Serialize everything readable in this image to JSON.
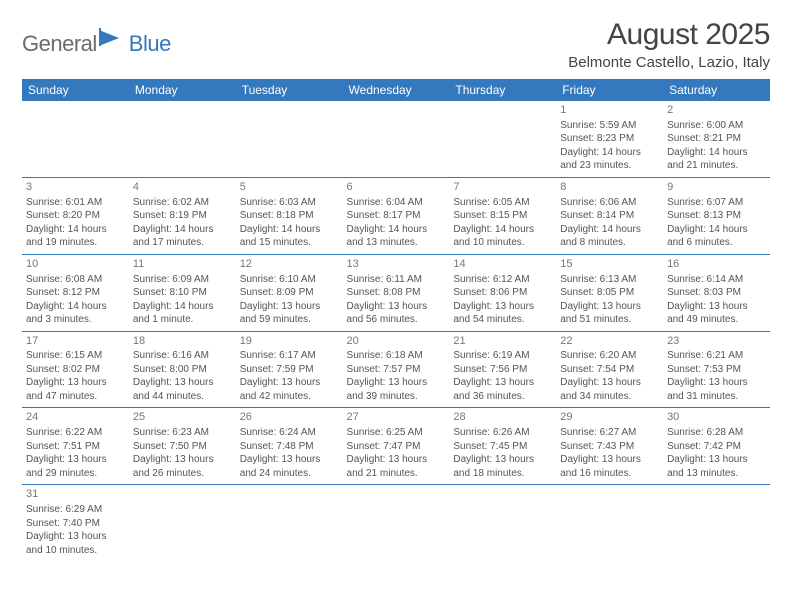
{
  "logo": {
    "text1": "General",
    "text2": "Blue"
  },
  "title": "August 2025",
  "location": "Belmonte Castello, Lazio, Italy",
  "colors": {
    "header_bg": "#3478bd",
    "header_text": "#ffffff",
    "border": "#3478bd",
    "body_text": "#555555",
    "daynum_text": "#777777",
    "title_text": "#444444",
    "logo_gray": "#6b6b6b"
  },
  "fonts": {
    "title_size": 30,
    "location_size": 15,
    "th_size": 12,
    "cell_size": 10,
    "daynum_size": 11
  },
  "dayHeaders": [
    "Sunday",
    "Monday",
    "Tuesday",
    "Wednesday",
    "Thursday",
    "Friday",
    "Saturday"
  ],
  "weeks": [
    [
      null,
      null,
      null,
      null,
      null,
      {
        "n": "1",
        "sr": "Sunrise: 5:59 AM",
        "ss": "Sunset: 8:23 PM",
        "d1": "Daylight: 14 hours",
        "d2": "and 23 minutes."
      },
      {
        "n": "2",
        "sr": "Sunrise: 6:00 AM",
        "ss": "Sunset: 8:21 PM",
        "d1": "Daylight: 14 hours",
        "d2": "and 21 minutes."
      }
    ],
    [
      {
        "n": "3",
        "sr": "Sunrise: 6:01 AM",
        "ss": "Sunset: 8:20 PM",
        "d1": "Daylight: 14 hours",
        "d2": "and 19 minutes."
      },
      {
        "n": "4",
        "sr": "Sunrise: 6:02 AM",
        "ss": "Sunset: 8:19 PM",
        "d1": "Daylight: 14 hours",
        "d2": "and 17 minutes."
      },
      {
        "n": "5",
        "sr": "Sunrise: 6:03 AM",
        "ss": "Sunset: 8:18 PM",
        "d1": "Daylight: 14 hours",
        "d2": "and 15 minutes."
      },
      {
        "n": "6",
        "sr": "Sunrise: 6:04 AM",
        "ss": "Sunset: 8:17 PM",
        "d1": "Daylight: 14 hours",
        "d2": "and 13 minutes."
      },
      {
        "n": "7",
        "sr": "Sunrise: 6:05 AM",
        "ss": "Sunset: 8:15 PM",
        "d1": "Daylight: 14 hours",
        "d2": "and 10 minutes."
      },
      {
        "n": "8",
        "sr": "Sunrise: 6:06 AM",
        "ss": "Sunset: 8:14 PM",
        "d1": "Daylight: 14 hours",
        "d2": "and 8 minutes."
      },
      {
        "n": "9",
        "sr": "Sunrise: 6:07 AM",
        "ss": "Sunset: 8:13 PM",
        "d1": "Daylight: 14 hours",
        "d2": "and 6 minutes."
      }
    ],
    [
      {
        "n": "10",
        "sr": "Sunrise: 6:08 AM",
        "ss": "Sunset: 8:12 PM",
        "d1": "Daylight: 14 hours",
        "d2": "and 3 minutes."
      },
      {
        "n": "11",
        "sr": "Sunrise: 6:09 AM",
        "ss": "Sunset: 8:10 PM",
        "d1": "Daylight: 14 hours",
        "d2": "and 1 minute."
      },
      {
        "n": "12",
        "sr": "Sunrise: 6:10 AM",
        "ss": "Sunset: 8:09 PM",
        "d1": "Daylight: 13 hours",
        "d2": "and 59 minutes."
      },
      {
        "n": "13",
        "sr": "Sunrise: 6:11 AM",
        "ss": "Sunset: 8:08 PM",
        "d1": "Daylight: 13 hours",
        "d2": "and 56 minutes."
      },
      {
        "n": "14",
        "sr": "Sunrise: 6:12 AM",
        "ss": "Sunset: 8:06 PM",
        "d1": "Daylight: 13 hours",
        "d2": "and 54 minutes."
      },
      {
        "n": "15",
        "sr": "Sunrise: 6:13 AM",
        "ss": "Sunset: 8:05 PM",
        "d1": "Daylight: 13 hours",
        "d2": "and 51 minutes."
      },
      {
        "n": "16",
        "sr": "Sunrise: 6:14 AM",
        "ss": "Sunset: 8:03 PM",
        "d1": "Daylight: 13 hours",
        "d2": "and 49 minutes."
      }
    ],
    [
      {
        "n": "17",
        "sr": "Sunrise: 6:15 AM",
        "ss": "Sunset: 8:02 PM",
        "d1": "Daylight: 13 hours",
        "d2": "and 47 minutes."
      },
      {
        "n": "18",
        "sr": "Sunrise: 6:16 AM",
        "ss": "Sunset: 8:00 PM",
        "d1": "Daylight: 13 hours",
        "d2": "and 44 minutes."
      },
      {
        "n": "19",
        "sr": "Sunrise: 6:17 AM",
        "ss": "Sunset: 7:59 PM",
        "d1": "Daylight: 13 hours",
        "d2": "and 42 minutes."
      },
      {
        "n": "20",
        "sr": "Sunrise: 6:18 AM",
        "ss": "Sunset: 7:57 PM",
        "d1": "Daylight: 13 hours",
        "d2": "and 39 minutes."
      },
      {
        "n": "21",
        "sr": "Sunrise: 6:19 AM",
        "ss": "Sunset: 7:56 PM",
        "d1": "Daylight: 13 hours",
        "d2": "and 36 minutes."
      },
      {
        "n": "22",
        "sr": "Sunrise: 6:20 AM",
        "ss": "Sunset: 7:54 PM",
        "d1": "Daylight: 13 hours",
        "d2": "and 34 minutes."
      },
      {
        "n": "23",
        "sr": "Sunrise: 6:21 AM",
        "ss": "Sunset: 7:53 PM",
        "d1": "Daylight: 13 hours",
        "d2": "and 31 minutes."
      }
    ],
    [
      {
        "n": "24",
        "sr": "Sunrise: 6:22 AM",
        "ss": "Sunset: 7:51 PM",
        "d1": "Daylight: 13 hours",
        "d2": "and 29 minutes."
      },
      {
        "n": "25",
        "sr": "Sunrise: 6:23 AM",
        "ss": "Sunset: 7:50 PM",
        "d1": "Daylight: 13 hours",
        "d2": "and 26 minutes."
      },
      {
        "n": "26",
        "sr": "Sunrise: 6:24 AM",
        "ss": "Sunset: 7:48 PM",
        "d1": "Daylight: 13 hours",
        "d2": "and 24 minutes."
      },
      {
        "n": "27",
        "sr": "Sunrise: 6:25 AM",
        "ss": "Sunset: 7:47 PM",
        "d1": "Daylight: 13 hours",
        "d2": "and 21 minutes."
      },
      {
        "n": "28",
        "sr": "Sunrise: 6:26 AM",
        "ss": "Sunset: 7:45 PM",
        "d1": "Daylight: 13 hours",
        "d2": "and 18 minutes."
      },
      {
        "n": "29",
        "sr": "Sunrise: 6:27 AM",
        "ss": "Sunset: 7:43 PM",
        "d1": "Daylight: 13 hours",
        "d2": "and 16 minutes."
      },
      {
        "n": "30",
        "sr": "Sunrise: 6:28 AM",
        "ss": "Sunset: 7:42 PM",
        "d1": "Daylight: 13 hours",
        "d2": "and 13 minutes."
      }
    ],
    [
      {
        "n": "31",
        "sr": "Sunrise: 6:29 AM",
        "ss": "Sunset: 7:40 PM",
        "d1": "Daylight: 13 hours",
        "d2": "and 10 minutes."
      },
      null,
      null,
      null,
      null,
      null,
      null
    ]
  ]
}
